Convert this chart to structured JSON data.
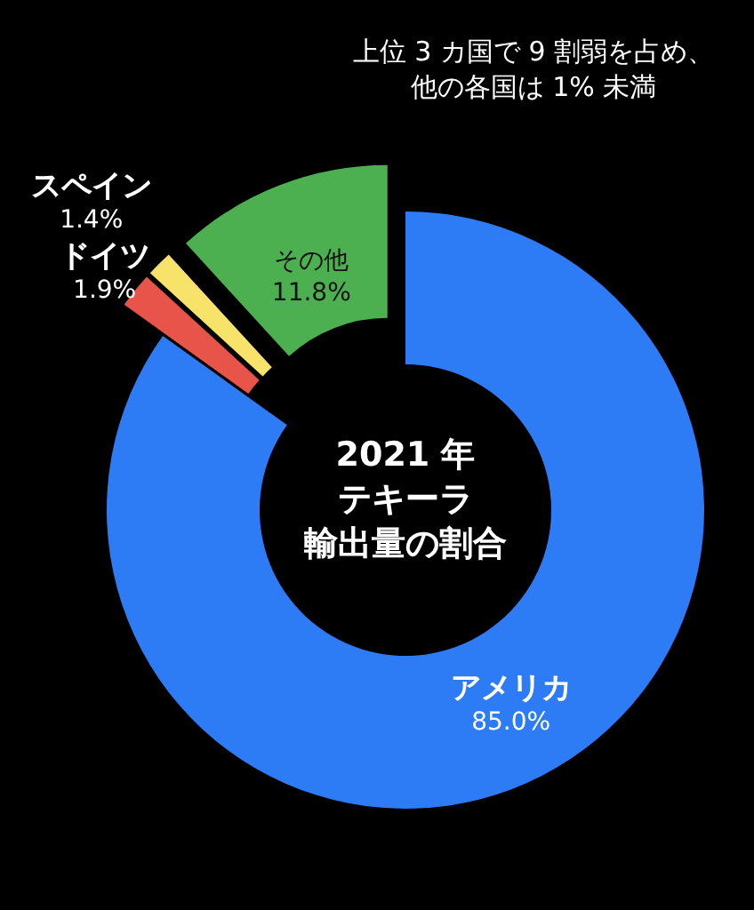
{
  "chart_data": {
    "type": "donut",
    "title": "2021 年テキーラ輸出量の割合",
    "categories": [
      "アメリカ",
      "ドイツ",
      "スペイン",
      "その他"
    ],
    "values": [
      85.0,
      1.9,
      1.4,
      11.8
    ],
    "value_labels": [
      "85.0%",
      "1.9%",
      "1.4%",
      "11.8%"
    ],
    "colors": [
      "#2e7bf6",
      "#e8534a",
      "#f7e36a",
      "#4caf50"
    ],
    "annotations": [
      "上位 3 カ国で 9 割弱を占め、他の各国は 1% 未満"
    ]
  }
}
